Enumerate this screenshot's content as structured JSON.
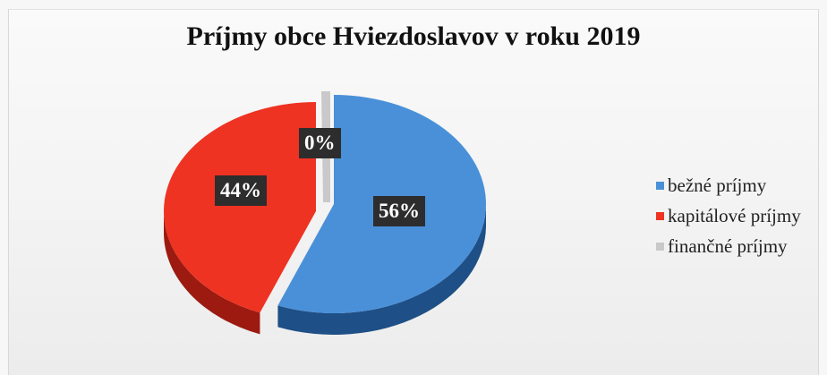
{
  "chart_data": {
    "type": "pie",
    "title": "Príjmy obce Hviezdoslavov v roku 2019",
    "slices": [
      {
        "name": "bežné príjmy",
        "value": 56,
        "label": "56%",
        "color": "#4a90d9",
        "side_color": "#1e4f86"
      },
      {
        "name": "kapitálové príjmy",
        "value": 44,
        "label": "44%",
        "color": "#ee3322",
        "side_color": "#9c1a10"
      },
      {
        "name": "finančné príjmy",
        "value": 0,
        "label": "0%",
        "color": "#c9c9c9",
        "side_color": "#8f8f8f"
      }
    ],
    "legend_position": "right"
  }
}
